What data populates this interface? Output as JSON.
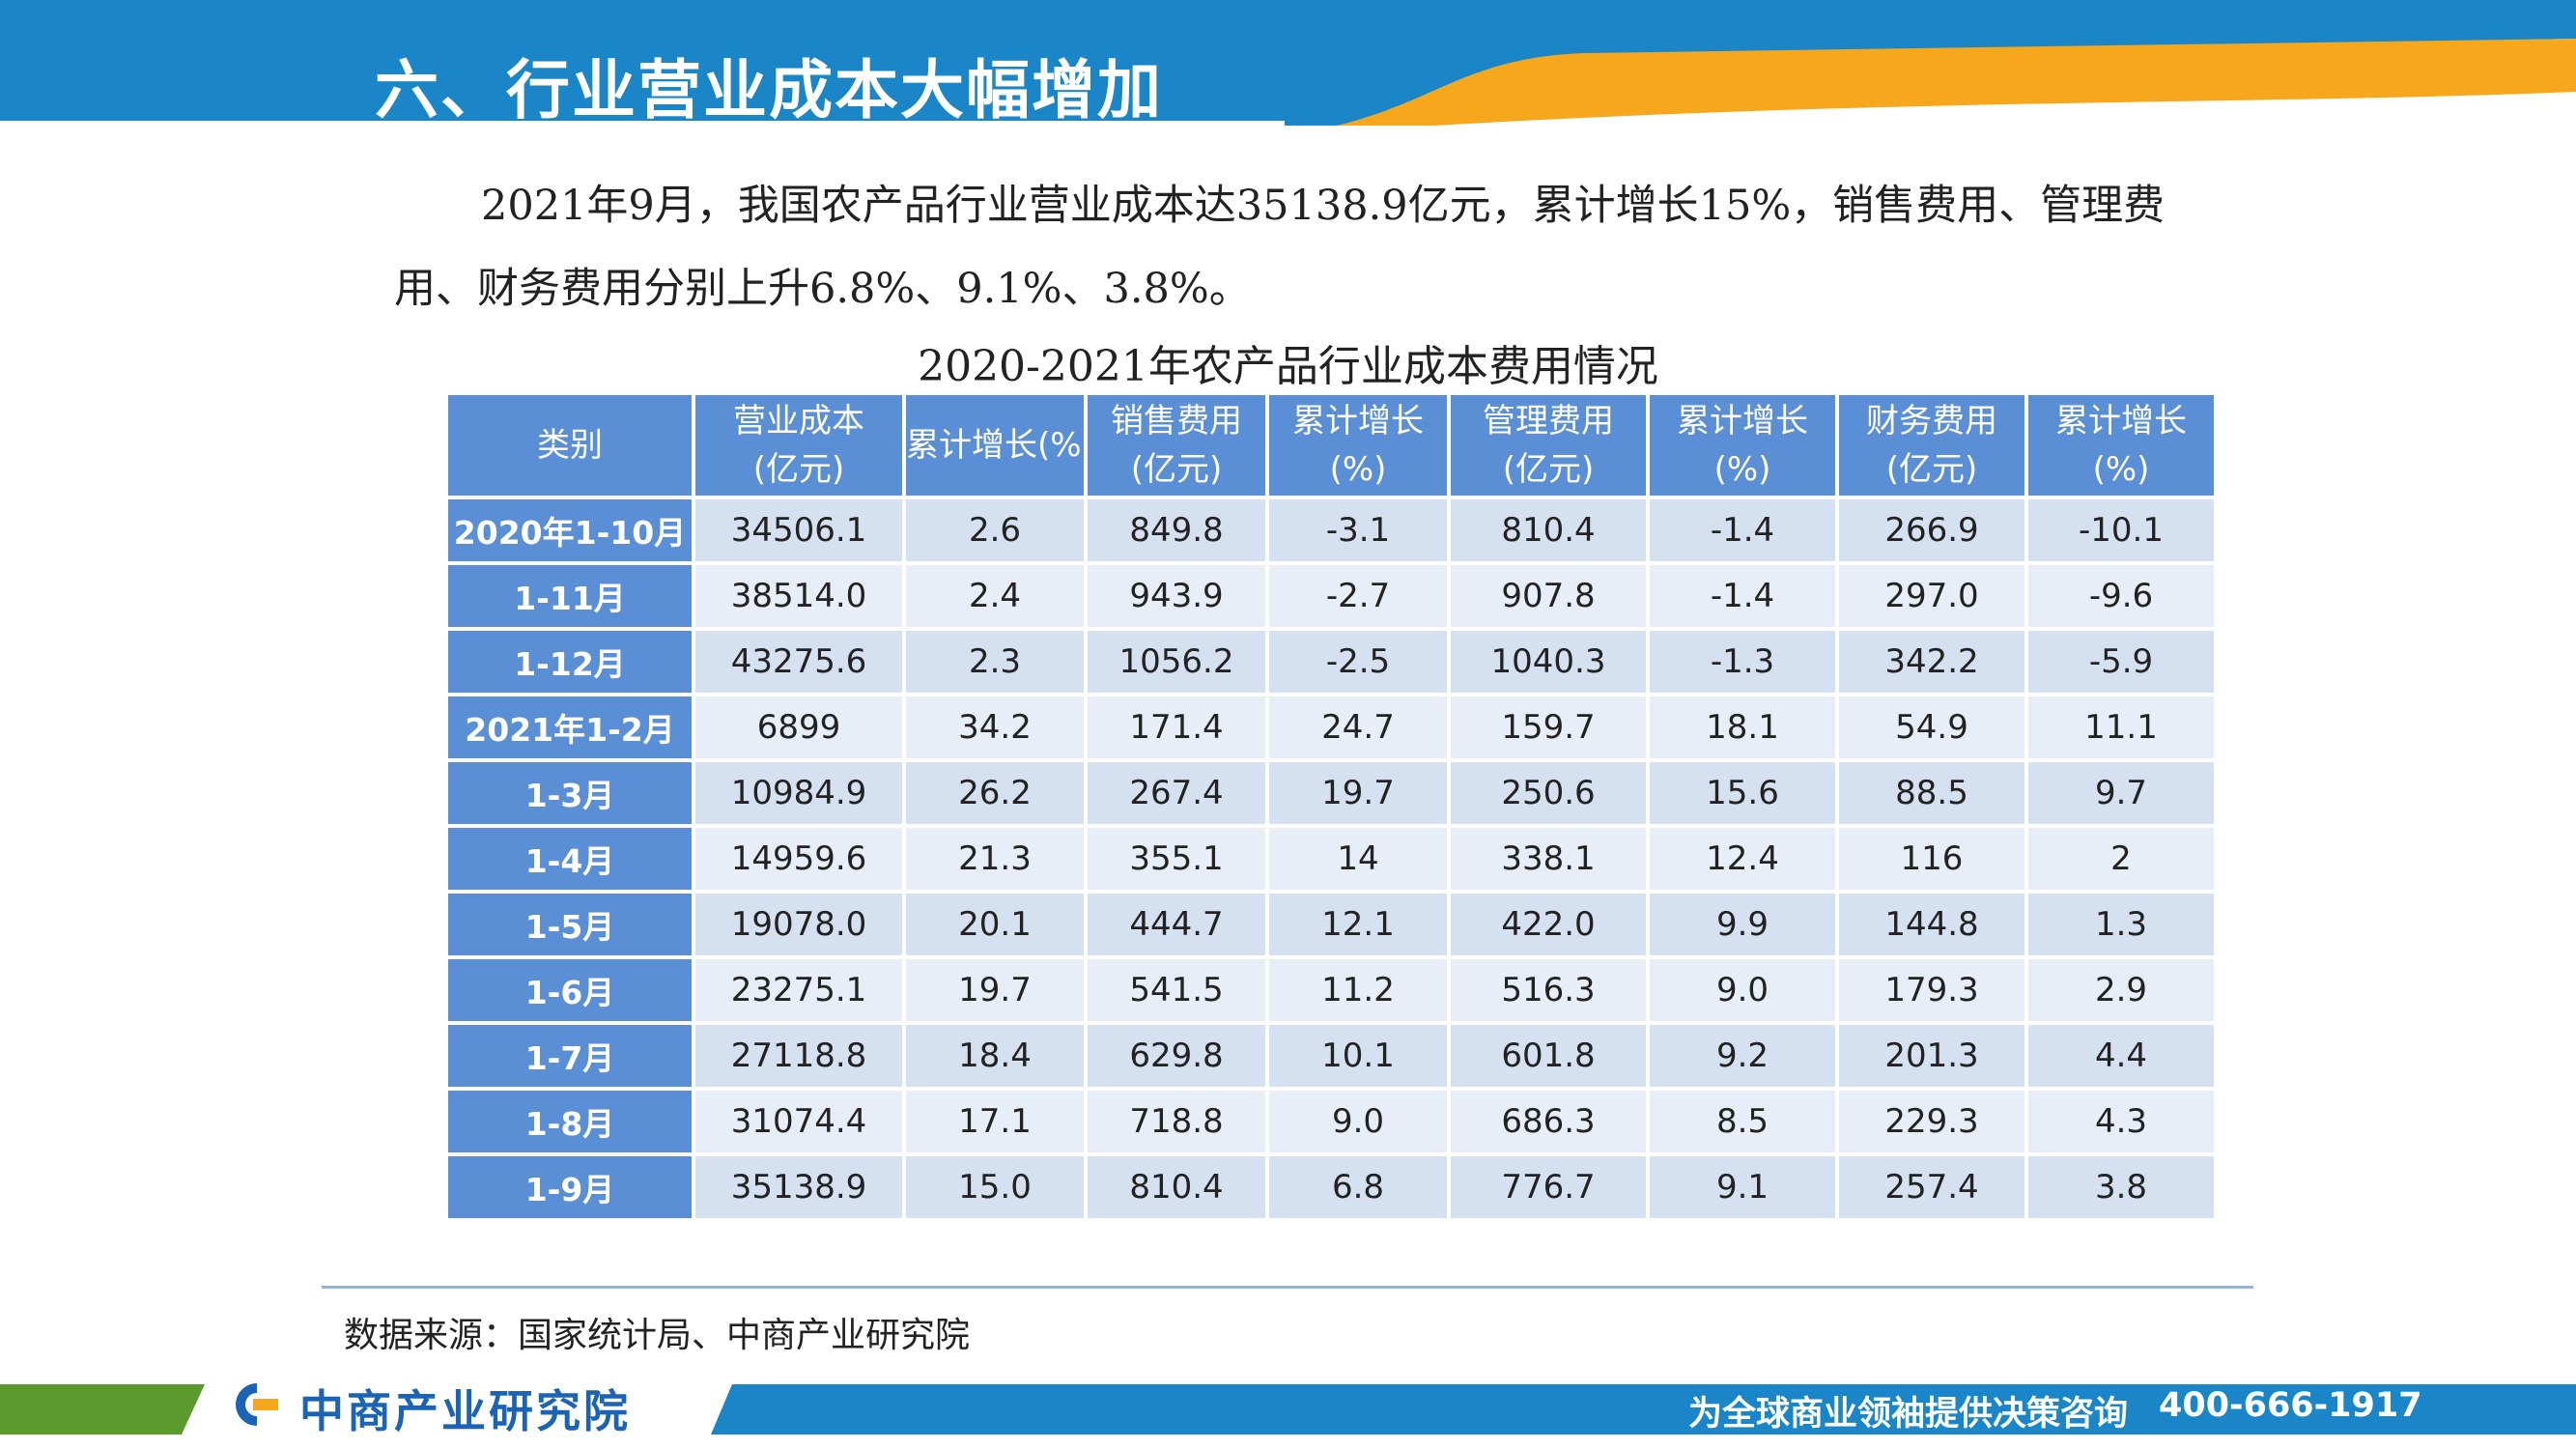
{
  "header": {
    "title": "六、行业营业成本大幅增加"
  },
  "intro": "2021年9月，我国农产品行业营业成本达35138.9亿元，累计增长15%，销售费用、管理费用、财务费用分别上升6.8%、9.1%、3.8%。",
  "table_title": "2020-2021年农产品行业成本费用情况",
  "table": {
    "headers": [
      [
        "类别"
      ],
      [
        "营业成本",
        "(亿元)"
      ],
      [
        "累计增长(%)"
      ],
      [
        "销售费用",
        "(亿元)"
      ],
      [
        "累计增长",
        "(%)"
      ],
      [
        "管理费用",
        "(亿元)"
      ],
      [
        "累计增长",
        "(%)"
      ],
      [
        "财务费用",
        "(亿元)"
      ],
      [
        "累计增长",
        "(%)"
      ]
    ],
    "rows": [
      [
        "2020年1-10月",
        "34506.1",
        "2.6",
        "849.8",
        "-3.1",
        "810.4",
        "-1.4",
        "266.9",
        "-10.1"
      ],
      [
        "1-11月",
        "38514.0",
        "2.4",
        "943.9",
        "-2.7",
        "907.8",
        "-1.4",
        "297.0",
        "-9.6"
      ],
      [
        "1-12月",
        "43275.6",
        "2.3",
        "1056.2",
        "-2.5",
        "1040.3",
        "-1.3",
        "342.2",
        "-5.9"
      ],
      [
        "2021年1-2月",
        "6899",
        "34.2",
        "171.4",
        "24.7",
        "159.7",
        "18.1",
        "54.9",
        "11.1"
      ],
      [
        "1-3月",
        "10984.9",
        "26.2",
        "267.4",
        "19.7",
        "250.6",
        "15.6",
        "88.5",
        "9.7"
      ],
      [
        "1-4月",
        "14959.6",
        "21.3",
        "355.1",
        "14",
        "338.1",
        "12.4",
        "116",
        "2"
      ],
      [
        "1-5月",
        "19078.0",
        "20.1",
        "444.7",
        "12.1",
        "422.0",
        "9.9",
        "144.8",
        "1.3"
      ],
      [
        "1-6月",
        "23275.1",
        "19.7",
        "541.5",
        "11.2",
        "516.3",
        "9.0",
        "179.3",
        "2.9"
      ],
      [
        "1-7月",
        "27118.8",
        "18.4",
        "629.8",
        "10.1",
        "601.8",
        "9.2",
        "201.3",
        "4.4"
      ],
      [
        "1-8月",
        "31074.4",
        "17.1",
        "718.8",
        "9.0",
        "686.3",
        "8.5",
        "229.3",
        "4.3"
      ],
      [
        "1-9月",
        "35138.9",
        "15.0",
        "810.4",
        "6.8",
        "776.7",
        "9.1",
        "257.4",
        "3.8"
      ]
    ]
  },
  "source": "数据来源：国家统计局、中商产业研究院",
  "footer": {
    "logo_text": "中商产业研究院",
    "slogan": "为全球商业领袖提供决策咨询",
    "phone": "400-666-1917"
  },
  "colors": {
    "header_blue": "#1a86c8",
    "accent_orange": "#f6a71b",
    "table_header": "#5b8fd5",
    "row_light": "#e8eef8",
    "row_dark": "#d5e0f1",
    "footer_green": "#5b9a2c"
  }
}
